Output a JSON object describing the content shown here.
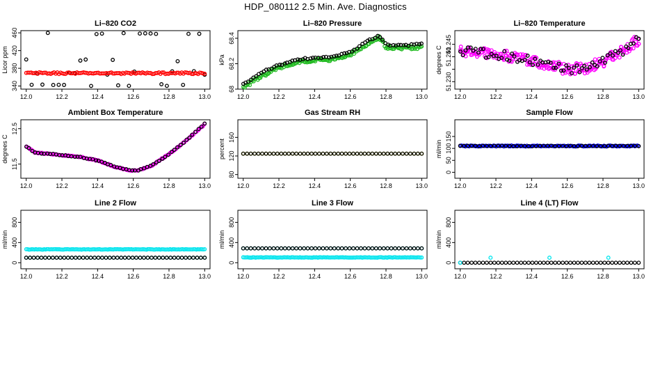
{
  "title": "HDP_080112  2.5 Min. Ave. Diagnostics",
  "chart_data": [
    {
      "type": "scatter",
      "title": "Li–820 CO2",
      "ylabel": "Licor ppm",
      "xlim": [
        11.97,
        13.03
      ],
      "ylim": [
        333,
        465
      ],
      "xticks": [
        12.0,
        12.2,
        12.4,
        12.6,
        12.8,
        13.0
      ],
      "yticks": [
        340,
        380,
        420,
        460
      ],
      "series": [
        {
          "name": "CO2 (black)",
          "color": "#000000",
          "pattern": "scatter",
          "n": 34,
          "base": 370,
          "jitter": 45
        },
        {
          "name": "CO2 (red)",
          "color": "#ff0000",
          "pattern": "flat",
          "n": 110,
          "base": 369,
          "jitter": 2
        }
      ]
    },
    {
      "type": "scatter",
      "title": "Li–820 Pressure",
      "ylabel": "kPa",
      "xlim": [
        11.97,
        13.03
      ],
      "ylim": [
        68.0,
        68.46
      ],
      "xticks": [
        12.0,
        12.2,
        12.4,
        12.6,
        12.8,
        13.0
      ],
      "yticks": [
        68.0,
        68.2,
        68.4
      ],
      "series": [
        {
          "name": "Pressure (green)",
          "color": "#22bb22",
          "pattern": "curve",
          "n": 160,
          "jitter": 0.012,
          "x": [
            12.0,
            12.1,
            12.2,
            12.3,
            12.4,
            12.5,
            12.6,
            12.7,
            12.76,
            12.8,
            12.9,
            13.0
          ],
          "y": [
            68.01,
            68.1,
            68.17,
            68.21,
            68.23,
            68.23,
            68.27,
            68.36,
            68.41,
            68.33,
            68.32,
            68.33
          ]
        },
        {
          "name": "Pressure (black)",
          "color": "#000000",
          "pattern": "curve",
          "n": 70,
          "jitter": 0.006,
          "x": [
            12.0,
            12.1,
            12.2,
            12.3,
            12.4,
            12.5,
            12.6,
            12.7,
            12.76,
            12.8,
            12.9,
            13.0
          ],
          "y": [
            68.04,
            68.13,
            68.19,
            68.23,
            68.25,
            68.25,
            68.29,
            68.38,
            68.42,
            68.35,
            68.34,
            68.36
          ]
        }
      ]
    },
    {
      "type": "scatter",
      "title": "Li–820 Temperature",
      "ylabel": "degrees C",
      "xlim": [
        11.97,
        13.03
      ],
      "ylim": [
        51.227,
        51.2505
      ],
      "xticks": [
        12.0,
        12.2,
        12.4,
        12.6,
        12.8,
        13.0
      ],
      "yticks": [
        51.23,
        51.235,
        51.24,
        51.245
      ],
      "ytickLabels": [
        "51.230",
        "",
        "51.240",
        "51.245"
      ],
      "series": [
        {
          "name": "Temperature (magenta)",
          "color": "#ff00ff",
          "pattern": "curve",
          "n": 230,
          "jitter": 0.0022,
          "x": [
            12.0,
            12.2,
            12.4,
            12.5,
            12.6,
            12.7,
            12.8,
            12.9,
            13.0
          ],
          "y": [
            51.2425,
            51.241,
            51.2385,
            51.2365,
            51.235,
            51.2355,
            51.238,
            51.242,
            51.247
          ]
        },
        {
          "name": "Temperature (black)",
          "color": "#000000",
          "pattern": "curve",
          "n": 70,
          "jitter": 0.0018,
          "x": [
            12.0,
            12.2,
            12.4,
            12.5,
            12.6,
            12.7,
            12.8,
            12.9,
            13.0
          ],
          "y": [
            51.2425,
            51.241,
            51.2385,
            51.2365,
            51.235,
            51.2355,
            51.238,
            51.242,
            51.247
          ]
        }
      ]
    },
    {
      "type": "scatter",
      "title": "Ambient Box Temperature",
      "ylabel": "degrees C",
      "xlim": [
        11.97,
        13.03
      ],
      "ylim": [
        11.1,
        12.75
      ],
      "xticks": [
        12.0,
        12.2,
        12.4,
        12.6,
        12.8,
        13.0
      ],
      "yticks": [
        11.5,
        12.5
      ],
      "series": [
        {
          "name": "Box temp (magenta)",
          "color": "#ff00ff",
          "pattern": "curve",
          "n": 150,
          "jitter": 0.015,
          "x": [
            12.0,
            12.05,
            12.15,
            12.3,
            12.4,
            12.5,
            12.58,
            12.62,
            12.7,
            12.8,
            12.9,
            13.0
          ],
          "y": [
            12.0,
            11.82,
            11.78,
            11.7,
            11.6,
            11.42,
            11.32,
            11.31,
            11.45,
            11.78,
            12.18,
            12.62
          ]
        },
        {
          "name": "Box temp (black)",
          "color": "#000000",
          "pattern": "curve",
          "n": 60,
          "jitter": 0.01,
          "x": [
            12.0,
            12.05,
            12.15,
            12.3,
            12.4,
            12.5,
            12.58,
            12.62,
            12.7,
            12.8,
            12.9,
            13.0
          ],
          "y": [
            12.0,
            11.82,
            11.78,
            11.7,
            11.6,
            11.42,
            11.32,
            11.31,
            11.45,
            11.78,
            12.18,
            12.64
          ]
        }
      ]
    },
    {
      "type": "scatter",
      "title": "Gas Stream RH",
      "ylabel": "percent",
      "xlim": [
        11.97,
        13.03
      ],
      "ylim": [
        72,
        198
      ],
      "xticks": [
        12.0,
        12.2,
        12.4,
        12.6,
        12.8,
        13.0
      ],
      "yticks": [
        80,
        120,
        160
      ],
      "series": [
        {
          "name": "RH (yellow)",
          "color": "#ffff00",
          "pattern": "flat",
          "n": 48,
          "base": 125,
          "jitter": 0
        },
        {
          "name": "RH (black)",
          "color": "#000000",
          "pattern": "flat",
          "n": 48,
          "base": 125,
          "jitter": 0
        }
      ]
    },
    {
      "type": "scatter",
      "title": "Sample Flow",
      "ylabel": "ml/min",
      "xlim": [
        11.97,
        13.03
      ],
      "ylim": [
        -25,
        220
      ],
      "xticks": [
        12.0,
        12.2,
        12.4,
        12.6,
        12.8,
        13.0
      ],
      "yticks": [
        0,
        50,
        100,
        150
      ],
      "series": [
        {
          "name": "Sample flow (blue)",
          "color": "#0000ff",
          "pattern": "flat",
          "n": 140,
          "base": 110,
          "jitter": 2
        },
        {
          "name": "Sample flow (black)",
          "color": "#000000",
          "pattern": "flat",
          "n": 48,
          "base": 110,
          "jitter": 1
        }
      ]
    },
    {
      "type": "scatter",
      "title": "Line 2 Flow",
      "ylabel": "ml/min",
      "xlim": [
        11.97,
        13.03
      ],
      "ylim": [
        -120,
        1040
      ],
      "xticks": [
        12.0,
        12.2,
        12.4,
        12.6,
        12.8,
        13.0
      ],
      "yticks": [
        0,
        400,
        800
      ],
      "series": [
        {
          "name": "Line 2 (cyan upper)",
          "color": "#00e5ee",
          "pattern": "flat",
          "n": 130,
          "base": 265,
          "jitter": 5
        },
        {
          "name": "Line 2 (cyan lower)",
          "color": "#00e5ee",
          "pattern": "flat",
          "n": 48,
          "base": 100,
          "jitter": 0
        },
        {
          "name": "Line 2 (black)",
          "color": "#000000",
          "pattern": "flat",
          "n": 48,
          "base": 100,
          "jitter": 0
        }
      ]
    },
    {
      "type": "scatter",
      "title": "Line 3 Flow",
      "ylabel": "ml/min",
      "xlim": [
        11.97,
        13.03
      ],
      "ylim": [
        -120,
        1040
      ],
      "xticks": [
        12.0,
        12.2,
        12.4,
        12.6,
        12.8,
        13.0
      ],
      "yticks": [
        0,
        400,
        800
      ],
      "series": [
        {
          "name": "Line 3 (cyan lower)",
          "color": "#00e5ee",
          "pattern": "flat",
          "n": 130,
          "base": 105,
          "jitter": 4
        },
        {
          "name": "Line 3 (cyan upper)",
          "color": "#00e5ee",
          "pattern": "flat",
          "n": 48,
          "base": 285,
          "jitter": 0
        },
        {
          "name": "Line 3 (black)",
          "color": "#000000",
          "pattern": "flat",
          "n": 48,
          "base": 285,
          "jitter": 0
        }
      ]
    },
    {
      "type": "scatter",
      "title": "Line 4 (LT) Flow",
      "ylabel": "ml/min",
      "xlim": [
        11.97,
        13.03
      ],
      "ylim": [
        -120,
        1040
      ],
      "xticks": [
        12.0,
        12.2,
        12.4,
        12.6,
        12.8,
        13.0
      ],
      "yticks": [
        0,
        400,
        800
      ],
      "series": [
        {
          "name": "Line 4 (black)",
          "color": "#000000",
          "pattern": "flat",
          "n": 48,
          "base": 0,
          "jitter": 0
        },
        {
          "name": "Line 4 (cyan)",
          "color": "#00e5ee",
          "pattern": "points",
          "x": [
            12.0,
            12.17,
            12.5,
            12.83
          ],
          "y": [
            0,
            100,
            100,
            100
          ]
        }
      ]
    }
  ]
}
